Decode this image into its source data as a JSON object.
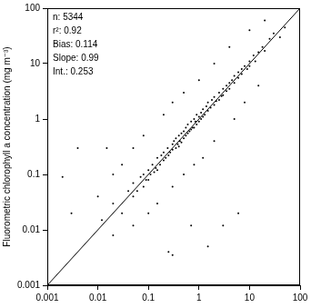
{
  "chart_data": {
    "type": "scatter",
    "y_label": "Fluorometric chlorophyll a concentration (mg m⁻³)",
    "annotations": [
      "n: 5344",
      "r²: 0.92",
      "Bias: 0.114",
      "Slope: 0.99",
      "Int.: 0.253"
    ],
    "log": true,
    "grid": false,
    "xlim": [
      0.001,
      100
    ],
    "ylim": [
      0.001,
      100
    ],
    "xticks": [
      0.001,
      0.01,
      0.1,
      1,
      10,
      100
    ],
    "yticks": [
      0.001,
      0.01,
      0.1,
      1,
      10,
      100
    ],
    "series": [
      {
        "type": "scatter",
        "color": "#000000",
        "marker": "circle",
        "x": [
          0.02,
          0.03,
          0.04,
          0.05,
          0.05,
          0.06,
          0.07,
          0.08,
          0.08,
          0.09,
          0.1,
          0.1,
          0.11,
          0.12,
          0.13,
          0.14,
          0.15,
          0.15,
          0.17,
          0.18,
          0.2,
          0.2,
          0.22,
          0.24,
          0.25,
          0.27,
          0.3,
          0.3,
          0.32,
          0.35,
          0.35,
          0.38,
          0.4,
          0.4,
          0.42,
          0.45,
          0.45,
          0.5,
          0.5,
          0.55,
          0.55,
          0.6,
          0.6,
          0.65,
          0.7,
          0.7,
          0.75,
          0.8,
          0.8,
          0.85,
          0.9,
          0.9,
          1,
          1,
          1.1,
          1.1,
          1.2,
          1.2,
          1.3,
          1.4,
          1.5,
          1.5,
          1.7,
          1.8,
          2,
          2,
          2.2,
          2.5,
          2.5,
          2.8,
          3,
          3,
          3.5,
          3.5,
          4,
          4,
          4.5,
          5,
          5,
          6,
          6,
          7,
          7,
          8,
          9,
          10,
          10,
          12,
          13,
          15,
          18,
          20,
          25,
          30,
          0.002,
          0.003,
          0.004,
          0.01,
          0.015,
          0.02,
          0.03,
          0.05,
          0.08,
          0.1,
          0.15,
          0.2,
          0.3,
          0.3,
          0.5,
          0.5,
          0.7,
          0.8,
          1,
          1.2,
          2,
          2,
          3,
          4,
          5,
          6,
          8,
          10,
          15,
          20,
          40,
          50,
          0.05,
          0.02,
          0.012,
          1.5,
          0.3,
          0.25
        ],
        "values": [
          0.03,
          0.02,
          0.05,
          0.04,
          0.07,
          0.05,
          0.09,
          0.06,
          0.1,
          0.08,
          0.12,
          0.08,
          0.1,
          0.15,
          0.11,
          0.13,
          0.2,
          0.12,
          0.15,
          0.22,
          0.18,
          0.25,
          0.2,
          0.3,
          0.22,
          0.25,
          0.35,
          0.28,
          0.4,
          0.3,
          0.45,
          0.35,
          0.5,
          0.32,
          0.4,
          0.55,
          0.38,
          0.6,
          0.45,
          0.5,
          0.7,
          0.55,
          0.8,
          0.6,
          0.9,
          0.65,
          0.7,
          1,
          0.7,
          0.9,
          1.2,
          0.8,
          1.1,
          0.9,
          1.3,
          1,
          1.5,
          1.1,
          1.2,
          1.7,
          1.4,
          2,
          1.6,
          2.2,
          1.8,
          2.5,
          2.1,
          3,
          2.2,
          2.6,
          3.5,
          2.7,
          4,
          3.2,
          4.5,
          3.5,
          5,
          6,
          4.5,
          5.5,
          7,
          8,
          6.5,
          9,
          8,
          11,
          9,
          14,
          11,
          16,
          20,
          17,
          28,
          35,
          0.09,
          0.02,
          0.3,
          0.04,
          0.3,
          0.1,
          0.15,
          0.3,
          0.5,
          0.02,
          0.03,
          1.2,
          2,
          0.06,
          0.1,
          3,
          0.012,
          0.15,
          5,
          0.2,
          0.4,
          10,
          0.012,
          20,
          1,
          0.02,
          2,
          40,
          4,
          60,
          30,
          45,
          0.012,
          0.008,
          0.015,
          0.005,
          0.0035,
          0.004
        ]
      },
      {
        "type": "line",
        "color": "#000000",
        "line_style": "solid",
        "x": [
          0.001,
          100
        ],
        "values": [
          0.001,
          100
        ]
      }
    ]
  }
}
